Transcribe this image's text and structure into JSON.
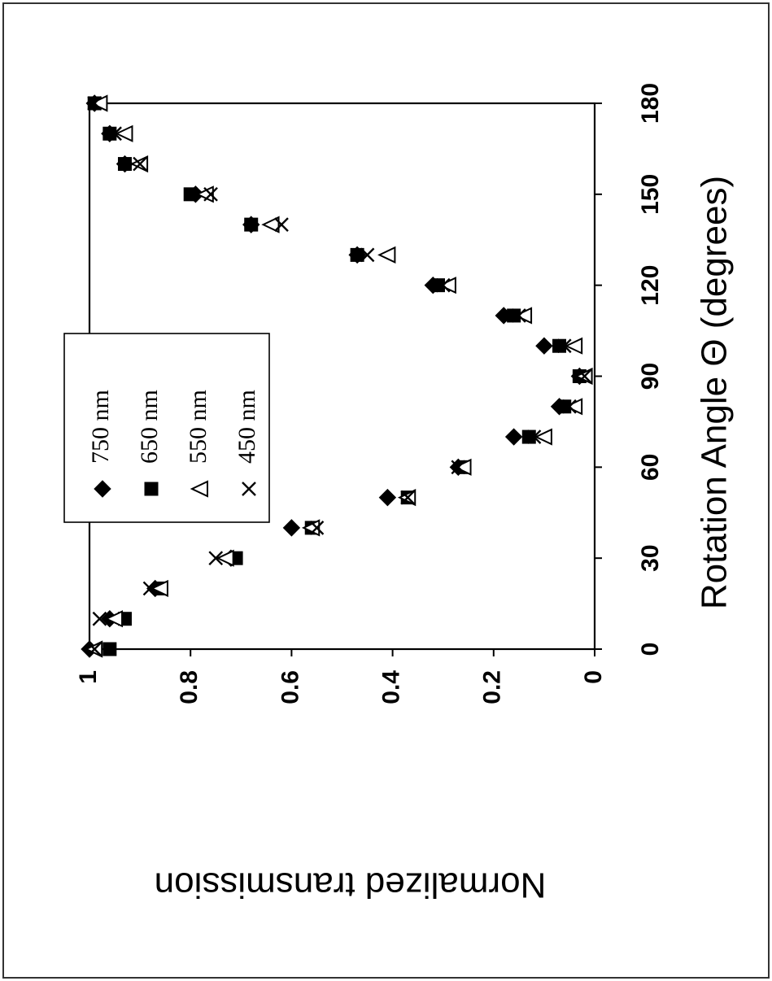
{
  "chart_data": {
    "type": "scatter",
    "xlabel": "Rotation Angle Θ (degrees)",
    "ylabel": "Normalized transmission",
    "xlim": [
      0,
      180
    ],
    "ylim": [
      0,
      1
    ],
    "x_ticks": [
      "0",
      "30",
      "60",
      "90",
      "120",
      "150",
      "180"
    ],
    "y_ticks": [
      "0",
      "0.2",
      "0.4",
      "0.6",
      "0.8",
      "1"
    ],
    "grid": false,
    "legend_position": "upper-middle",
    "series": [
      {
        "name": "750 nm",
        "marker": "filled-diamond",
        "points": [
          [
            0,
            1.0
          ],
          [
            10,
            0.96
          ],
          [
            20,
            0.87
          ],
          [
            30,
            0.72
          ],
          [
            40,
            0.6
          ],
          [
            50,
            0.41
          ],
          [
            60,
            0.27
          ],
          [
            70,
            0.16
          ],
          [
            80,
            0.07
          ],
          [
            90,
            0.03
          ],
          [
            100,
            0.1
          ],
          [
            110,
            0.18
          ],
          [
            120,
            0.32
          ],
          [
            130,
            0.47
          ],
          [
            140,
            0.68
          ],
          [
            150,
            0.79
          ],
          [
            160,
            0.93
          ],
          [
            170,
            0.96
          ],
          [
            180,
            0.99
          ]
        ]
      },
      {
        "name": "650 nm",
        "marker": "filled-square",
        "points": [
          [
            0,
            0.96
          ],
          [
            10,
            0.93
          ],
          [
            20,
            0.86
          ],
          [
            30,
            0.71
          ],
          [
            40,
            0.56
          ],
          [
            50,
            0.37
          ],
          [
            60,
            0.26
          ],
          [
            70,
            0.13
          ],
          [
            80,
            0.06
          ],
          [
            90,
            0.03
          ],
          [
            100,
            0.07
          ],
          [
            110,
            0.16
          ],
          [
            120,
            0.31
          ],
          [
            130,
            0.47
          ],
          [
            140,
            0.68
          ],
          [
            150,
            0.8
          ],
          [
            160,
            0.93
          ],
          [
            170,
            0.96
          ],
          [
            180,
            0.99
          ]
        ]
      },
      {
        "name": "550 nm",
        "marker": "open-triangle",
        "points": [
          [
            0,
            0.99
          ],
          [
            10,
            0.95
          ],
          [
            20,
            0.86
          ],
          [
            30,
            0.73
          ],
          [
            40,
            0.56
          ],
          [
            50,
            0.37
          ],
          [
            60,
            0.26
          ],
          [
            70,
            0.1
          ],
          [
            80,
            0.04
          ],
          [
            90,
            0.02
          ],
          [
            100,
            0.04
          ],
          [
            110,
            0.14
          ],
          [
            120,
            0.29
          ],
          [
            130,
            0.41
          ],
          [
            140,
            0.64
          ],
          [
            150,
            0.77
          ],
          [
            160,
            0.9
          ],
          [
            170,
            0.93
          ],
          [
            180,
            0.98
          ]
        ]
      },
      {
        "name": "450 nm",
        "marker": "x",
        "points": [
          [
            0,
            0.99
          ],
          [
            10,
            0.98
          ],
          [
            20,
            0.88
          ],
          [
            30,
            0.75
          ],
          [
            40,
            0.55
          ],
          [
            50,
            0.37
          ],
          [
            60,
            0.27
          ],
          [
            70,
            0.12
          ],
          [
            80,
            0.05
          ],
          [
            90,
            0.02
          ],
          [
            100,
            0.06
          ],
          [
            110,
            0.15
          ],
          [
            120,
            0.3
          ],
          [
            130,
            0.45
          ],
          [
            140,
            0.62
          ],
          [
            150,
            0.76
          ],
          [
            160,
            0.9
          ],
          [
            170,
            0.95
          ],
          [
            180,
            0.99
          ]
        ]
      }
    ]
  }
}
